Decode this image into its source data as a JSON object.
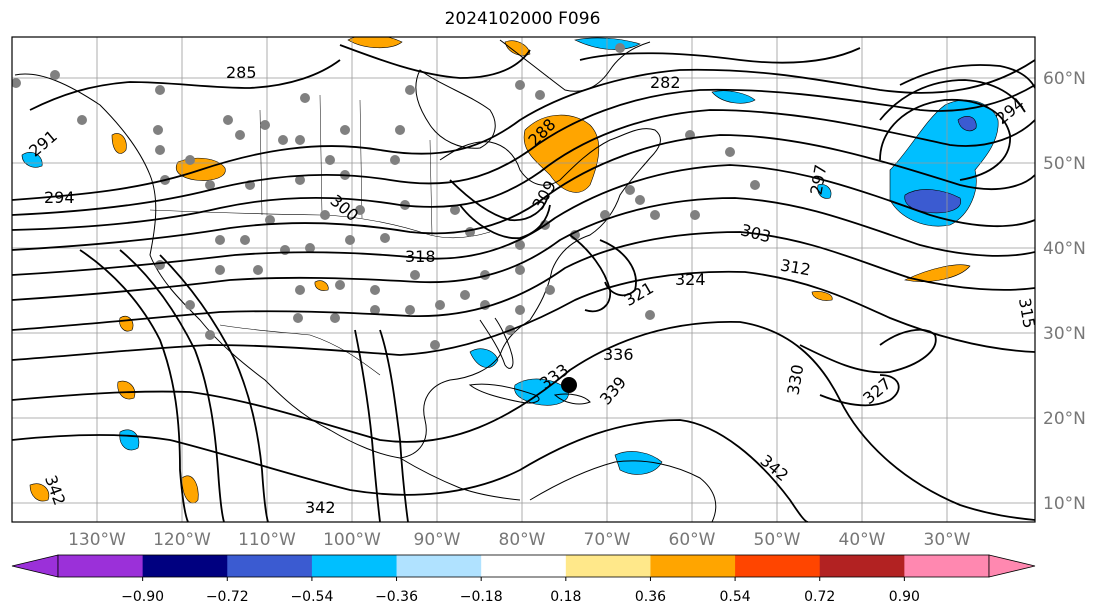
{
  "title": "2024102000 F096",
  "lon_labels": [
    "130°W",
    "120°W",
    "110°W",
    "100°W",
    "90°W",
    "80°W",
    "70°W",
    "60°W",
    "50°W",
    "40°W",
    "30°W"
  ],
  "lat_labels": [
    "60°N",
    "50°N",
    "40°N",
    "30°N",
    "20°N",
    "10°N"
  ],
  "contour_labels": [
    "285",
    "291",
    "294",
    "282",
    "288",
    "294",
    "297",
    "300",
    "303",
    "309",
    "312",
    "315",
    "318",
    "321",
    "324",
    "327",
    "330",
    "333",
    "336",
    "339",
    "342",
    "342",
    "342"
  ],
  "colorbar": {
    "ticks": [
      "−0.90",
      "−0.72",
      "−0.54",
      "−0.36",
      "−0.18",
      "0.18",
      "0.36",
      "0.54",
      "0.72",
      "0.90"
    ],
    "colors": [
      "#9b30d9",
      "#000080",
      "#3b5bd1",
      "#00bfff",
      "#b0e2ff",
      "#ffffff",
      "#ffe88a",
      "#ffa500",
      "#ff4500",
      "#b22222",
      "#ff88b0"
    ],
    "under_color": "#9b30d9",
    "over_color": "#ff88b0"
  },
  "colors": {
    "positive_fill": "#ffa500",
    "negative_fill": "#00bfff",
    "strong_negative_fill": "#3b5bd1",
    "contour": "#000000",
    "gridline": "#999999",
    "station_dot": "#808080"
  }
}
